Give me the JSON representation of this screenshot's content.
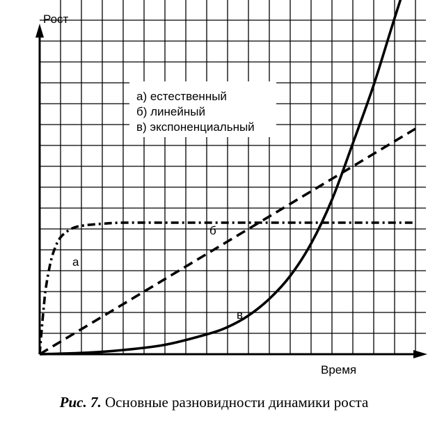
{
  "chart_data": {
    "type": "line",
    "ylabel": "Рост",
    "xlabel": "Время",
    "legend": {
      "items": [
        "а) естественный",
        "б) линейный",
        "в) экспоненциальный"
      ],
      "placement": "top-center"
    },
    "grid": true,
    "xlim": [
      0,
      18.5
    ],
    "ylim": [
      0,
      19
    ],
    "series": [
      {
        "name": "а) естественный",
        "label": "а",
        "style": "dash-dot",
        "x": [
          0,
          0.1,
          0.2,
          0.3,
          0.5,
          0.7,
          1,
          1.5,
          2,
          3,
          4,
          6,
          8,
          10,
          12,
          14,
          16,
          18
        ],
        "y": [
          0,
          1.2,
          2.3,
          3.2,
          4.3,
          5.0,
          5.6,
          6.0,
          6.15,
          6.25,
          6.3,
          6.3,
          6.3,
          6.3,
          6.3,
          6.3,
          6.3,
          6.3
        ]
      },
      {
        "name": "б) линейный",
        "label": "б",
        "style": "dashed",
        "x": [
          0,
          18
        ],
        "y": [
          0,
          10.8
        ]
      },
      {
        "name": "в) экспоненциальный",
        "label": "в",
        "style": "solid",
        "x": [
          0,
          2,
          4,
          6,
          8,
          9,
          10,
          11,
          12,
          13,
          14,
          15,
          16,
          17,
          18
        ],
        "y": [
          0,
          0.06,
          0.2,
          0.45,
          0.95,
          1.3,
          1.85,
          2.65,
          3.75,
          5.3,
          7.4,
          10.1,
          12.9,
          16.1,
          19.2
        ]
      }
    ]
  },
  "caption": {
    "label": "Рис. 7.",
    "text": " Основные разновидности динамики роста"
  }
}
